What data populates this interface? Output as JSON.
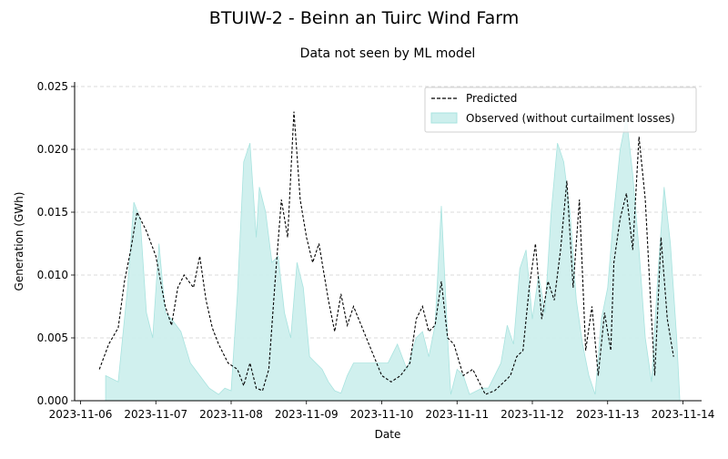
{
  "chart_data": {
    "type": "line",
    "title": "BTUIW-2 - Beinn an Tuirc Wind Farm",
    "subtitle": "Data not seen by ML model",
    "xlabel": "Date",
    "ylabel": "Generation (GWh)",
    "x_ticks": [
      "2023-11-06",
      "2023-11-07",
      "2023-11-08",
      "2023-11-09",
      "2023-11-10",
      "2023-11-11",
      "2023-11-12",
      "2023-11-13",
      "2023-11-14"
    ],
    "y_ticks": [
      "0.000",
      "0.005",
      "0.010",
      "0.015",
      "0.020",
      "0.025"
    ],
    "xlim": [
      "2023-11-06 00:00",
      "2023-11-14 00:00"
    ],
    "ylim": [
      0,
      0.025
    ],
    "grid": "horizontal dashed",
    "legend_position": "top-right",
    "colors": {
      "predicted": "#000000",
      "observed_fill": "#cdefed",
      "observed_edge": "#a8e3df",
      "grid": "#cfcfcf"
    },
    "series": [
      {
        "name": "Predicted",
        "style": "dashed line",
        "x": [
          "2023-11-06 06:00",
          "2023-11-06 09:00",
          "2023-11-06 12:00",
          "2023-11-06 14:00",
          "2023-11-06 16:00",
          "2023-11-06 18:00",
          "2023-11-06 21:00",
          "2023-11-07 00:00",
          "2023-11-07 03:00",
          "2023-11-07 05:00",
          "2023-11-07 07:00",
          "2023-11-07 09:00",
          "2023-11-07 12:00",
          "2023-11-07 14:00",
          "2023-11-07 16:00",
          "2023-11-07 18:00",
          "2023-11-07 20:00",
          "2023-11-07 23:00",
          "2023-11-08 02:00",
          "2023-11-08 04:00",
          "2023-11-08 06:00",
          "2023-11-08 08:00",
          "2023-11-08 10:00",
          "2023-11-08 12:00",
          "2023-11-08 14:00",
          "2023-11-08 16:00",
          "2023-11-08 18:00",
          "2023-11-08 20:00",
          "2023-11-08 22:00",
          "2023-11-09 00:00",
          "2023-11-09 02:00",
          "2023-11-09 04:00",
          "2023-11-09 07:00",
          "2023-11-09 09:00",
          "2023-11-09 11:00",
          "2023-11-09 13:00",
          "2023-11-09 15:00",
          "2023-11-10 00:00",
          "2023-11-10 03:00",
          "2023-11-10 06:00",
          "2023-11-10 09:00",
          "2023-11-10 11:00",
          "2023-11-10 13:00",
          "2023-11-10 15:00",
          "2023-11-10 17:00",
          "2023-11-10 19:00",
          "2023-11-10 21:00",
          "2023-11-10 23:00",
          "2023-11-11 02:00",
          "2023-11-11 05:00",
          "2023-11-11 09:00",
          "2023-11-11 12:00",
          "2023-11-11 15:00",
          "2023-11-11 17:00",
          "2023-11-11 19:00",
          "2023-11-11 21:00",
          "2023-11-11 23:00",
          "2023-11-12 01:00",
          "2023-11-12 03:00",
          "2023-11-12 05:00",
          "2023-11-12 07:00",
          "2023-11-12 09:00",
          "2023-11-12 11:00",
          "2023-11-12 13:00",
          "2023-11-12 15:00",
          "2023-11-12 17:00",
          "2023-11-12 19:00",
          "2023-11-12 21:00",
          "2023-11-12 23:00",
          "2023-11-13 01:00",
          "2023-11-13 02:00",
          "2023-11-13 04:00",
          "2023-11-13 06:00",
          "2023-11-13 08:00",
          "2023-11-13 10:00",
          "2023-11-13 12:00",
          "2023-11-13 14:00",
          "2023-11-13 15:00",
          "2023-11-13 17:00",
          "2023-11-13 19:00",
          "2023-11-13 21:00"
        ],
        "values": [
          0.0025,
          0.0045,
          0.0058,
          0.0095,
          0.012,
          0.015,
          0.0135,
          0.0115,
          0.0075,
          0.006,
          0.009,
          0.01,
          0.009,
          0.0115,
          0.008,
          0.0058,
          0.0045,
          0.003,
          0.0025,
          0.0012,
          0.003,
          0.001,
          0.0008,
          0.0025,
          0.0095,
          0.016,
          0.013,
          0.023,
          0.016,
          0.013,
          0.011,
          0.0125,
          0.008,
          0.0055,
          0.0085,
          0.006,
          0.0075,
          0.002,
          0.0015,
          0.002,
          0.003,
          0.0065,
          0.0075,
          0.0055,
          0.006,
          0.0095,
          0.005,
          0.0045,
          0.002,
          0.0025,
          0.0005,
          0.0008,
          0.0015,
          0.002,
          0.0035,
          0.004,
          0.009,
          0.0125,
          0.0065,
          0.0095,
          0.008,
          0.012,
          0.0175,
          0.009,
          0.016,
          0.004,
          0.0075,
          0.002,
          0.007,
          0.004,
          0.011,
          0.0145,
          0.0165,
          0.012,
          0.021,
          0.016,
          0.0065,
          0.002,
          0.013,
          0.0065,
          0.0035
        ]
      },
      {
        "name": "Observed (without curtailment losses)",
        "style": "filled area",
        "x": [
          "2023-11-06 08:00",
          "2023-11-06 12:00",
          "2023-11-06 15:00",
          "2023-11-06 17:00",
          "2023-11-06 19:00",
          "2023-11-06 21:00",
          "2023-11-06 23:00",
          "2023-11-07 01:00",
          "2023-11-07 03:00",
          "2023-11-07 05:00",
          "2023-11-07 08:00",
          "2023-11-07 11:00",
          "2023-11-07 14:00",
          "2023-11-07 17:00",
          "2023-11-07 20:00",
          "2023-11-07 22:00",
          "2023-11-08 00:00",
          "2023-11-08 02:00",
          "2023-11-08 04:00",
          "2023-11-08 06:00",
          "2023-11-08 08:00",
          "2023-11-08 09:00",
          "2023-11-08 11:00",
          "2023-11-08 13:00",
          "2023-11-08 15:00",
          "2023-11-08 17:00",
          "2023-11-08 19:00",
          "2023-11-08 21:00",
          "2023-11-08 23:00",
          "2023-11-09 01:00",
          "2023-11-09 03:00",
          "2023-11-09 05:00",
          "2023-11-09 07:00",
          "2023-11-09 09:00",
          "2023-11-09 11:00",
          "2023-11-09 13:00",
          "2023-11-09 15:00",
          "2023-11-10 02:00",
          "2023-11-10 05:00",
          "2023-11-10 08:00",
          "2023-11-10 11:00",
          "2023-11-10 13:00",
          "2023-11-10 15:00",
          "2023-11-10 17:00",
          "2023-11-10 19:00",
          "2023-11-10 21:00",
          "2023-11-10 22:00",
          "2023-11-11 00:00",
          "2023-11-11 02:00",
          "2023-11-11 04:00",
          "2023-11-11 08:00",
          "2023-11-11 10:00",
          "2023-11-11 12:00",
          "2023-11-11 14:00",
          "2023-11-11 16:00",
          "2023-11-11 18:00",
          "2023-11-11 20:00",
          "2023-11-11 22:00",
          "2023-11-12 00:00",
          "2023-11-12 02:00",
          "2023-11-12 04:00",
          "2023-11-12 06:00",
          "2023-11-12 08:00",
          "2023-11-12 10:00",
          "2023-11-12 12:00",
          "2023-11-12 14:00",
          "2023-11-12 16:00",
          "2023-11-12 18:00",
          "2023-11-12 20:00",
          "2023-11-12 22:00",
          "2023-11-13 00:00",
          "2023-11-13 02:00",
          "2023-11-13 04:00",
          "2023-11-13 06:00",
          "2023-11-13 08:00",
          "2023-11-13 10:00",
          "2023-11-13 12:00",
          "2023-11-13 14:00",
          "2023-11-13 16:00",
          "2023-11-13 18:00",
          "2023-11-13 20:00",
          "2023-11-13 22:00",
          "2023-11-13 23:00"
        ],
        "values": [
          0.002,
          0.0015,
          0.009,
          0.0158,
          0.0145,
          0.007,
          0.005,
          0.0125,
          0.007,
          0.0065,
          0.0055,
          0.003,
          0.002,
          0.001,
          0.0005,
          0.001,
          0.0008,
          0.0085,
          0.019,
          0.0205,
          0.013,
          0.017,
          0.015,
          0.011,
          0.0115,
          0.007,
          0.005,
          0.011,
          0.009,
          0.0035,
          0.003,
          0.0025,
          0.0015,
          0.0008,
          0.0006,
          0.002,
          0.003,
          0.003,
          0.0045,
          0.0025,
          0.005,
          0.0055,
          0.0035,
          0.006,
          0.0155,
          0.005,
          0.0005,
          0.0025,
          0.002,
          0.0005,
          0.001,
          0.001,
          0.002,
          0.003,
          0.006,
          0.0045,
          0.0105,
          0.012,
          0.0065,
          0.01,
          0.007,
          0.015,
          0.0205,
          0.019,
          0.015,
          0.008,
          0.0045,
          0.002,
          0.0005,
          0.0065,
          0.009,
          0.015,
          0.02,
          0.0225,
          0.018,
          0.012,
          0.005,
          0.0015,
          0.01,
          0.017,
          0.0125,
          0.005,
          0.0
        ]
      }
    ]
  }
}
